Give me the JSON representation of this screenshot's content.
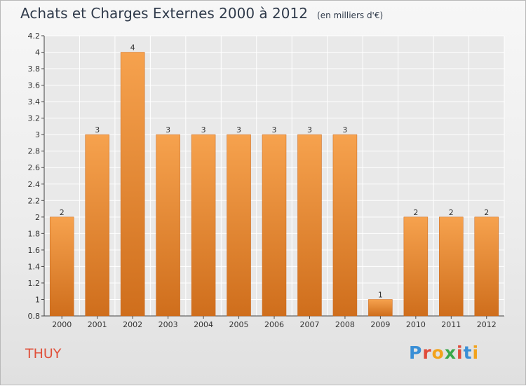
{
  "chart_data": {
    "type": "bar",
    "title": "Achats et Charges Externes 2000 à 2012",
    "subtitle": "(en milliers d'€)",
    "categories": [
      "2000",
      "2001",
      "2002",
      "2003",
      "2004",
      "2005",
      "2006",
      "2007",
      "2008",
      "2009",
      "2010",
      "2011",
      "2012"
    ],
    "values": [
      2,
      3,
      4,
      3,
      3,
      3,
      3,
      3,
      3,
      1,
      2,
      2,
      2
    ],
    "value_labels": [
      "2",
      "3",
      "4",
      "3",
      "3",
      "3",
      "3",
      "3",
      "3",
      "1",
      "2",
      "2",
      "2"
    ],
    "ylim": [
      0.8,
      4.2
    ],
    "yticks": [
      0.8,
      1,
      1.2,
      1.4,
      1.6,
      1.8,
      2,
      2.2,
      2.4,
      2.6,
      2.8,
      3,
      3.2,
      3.4,
      3.6,
      3.8,
      4,
      4.2
    ],
    "ytick_labels": [
      "0.8",
      "1",
      "1.2",
      "1.4",
      "1.6",
      "1.8",
      "2",
      "2.2",
      "2.4",
      "2.6",
      "2.8",
      "3",
      "3.2",
      "3.4",
      "3.6",
      "3.8",
      "4",
      "4.2"
    ],
    "grid": true,
    "bar_color_top": "#f6a24e",
    "bar_color_bottom": "#cf6e1c"
  },
  "footer": {
    "commune": "THUY",
    "logo_letters": [
      {
        "ch": "P",
        "color": "#3a8fd6"
      },
      {
        "ch": "r",
        "color": "#e04b3a"
      },
      {
        "ch": "o",
        "color": "#f2a31c"
      },
      {
        "ch": "x",
        "color": "#3aa84a"
      },
      {
        "ch": "i",
        "color": "#e04b3a"
      },
      {
        "ch": "t",
        "color": "#3a8fd6"
      },
      {
        "ch": "i",
        "color": "#f2a31c"
      }
    ]
  }
}
